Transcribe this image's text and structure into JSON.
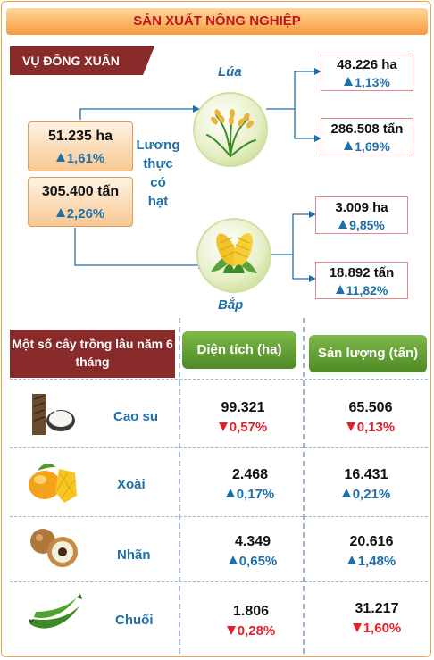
{
  "title": "SẢN XUẤT NÔNG NGHIỆP",
  "season": "VỤ ĐÔNG XUÂN",
  "cereal": {
    "label_lines": [
      "Lương",
      "thực",
      "có",
      "hạt"
    ],
    "area": {
      "value": "51.235 ha",
      "change": "1,61%",
      "trend": "up"
    },
    "output": {
      "value": "305.400 tấn",
      "change": "2,26%",
      "trend": "up"
    }
  },
  "rice": {
    "name": "Lúa",
    "area": {
      "value": "48.226 ha",
      "change": "1,13%",
      "trend": "up"
    },
    "output": {
      "value": "286.508 tấn",
      "change": "1,69%",
      "trend": "up"
    }
  },
  "corn": {
    "name": "Bắp",
    "area": {
      "value": "3.009 ha",
      "change": "9,85%",
      "trend": "up"
    },
    "output": {
      "value": "18.892 tấn",
      "change": "11,82%",
      "trend": "up"
    }
  },
  "table": {
    "header_crops": "Một số cây trồng lâu năm 6 tháng",
    "header_area": "Diện tích (ha)",
    "header_output": "Sản lượng (tấn)",
    "rows": [
      {
        "name": "Cao su",
        "icon": "rubber-tap-icon",
        "area": {
          "value": "99.321",
          "change": "0,57%",
          "trend": "down"
        },
        "output": {
          "value": "65.506",
          "change": "0,13%",
          "trend": "down"
        }
      },
      {
        "name": "Xoài",
        "icon": "mango-icon",
        "area": {
          "value": "2.468",
          "change": "0,17%",
          "trend": "up"
        },
        "output": {
          "value": "16.431",
          "change": "0,21%",
          "trend": "up"
        }
      },
      {
        "name": "Nhãn",
        "icon": "longan-icon",
        "area": {
          "value": "4.349",
          "change": "0,65%",
          "trend": "up"
        },
        "output": {
          "value": "20.616",
          "change": "1,48%",
          "trend": "up"
        }
      },
      {
        "name": "Chuối",
        "icon": "banana-icon",
        "area": {
          "value": "1.806",
          "change": "0,28%",
          "trend": "down"
        },
        "output": {
          "value": "31.217",
          "change": "1,60%",
          "trend": "down"
        }
      }
    ]
  },
  "colors": {
    "up": "#1f6fa8",
    "down": "#e0202a",
    "header_dark": "#8a2b2b",
    "header_green": "#5c9a2e",
    "accent": "#f59a3d"
  }
}
